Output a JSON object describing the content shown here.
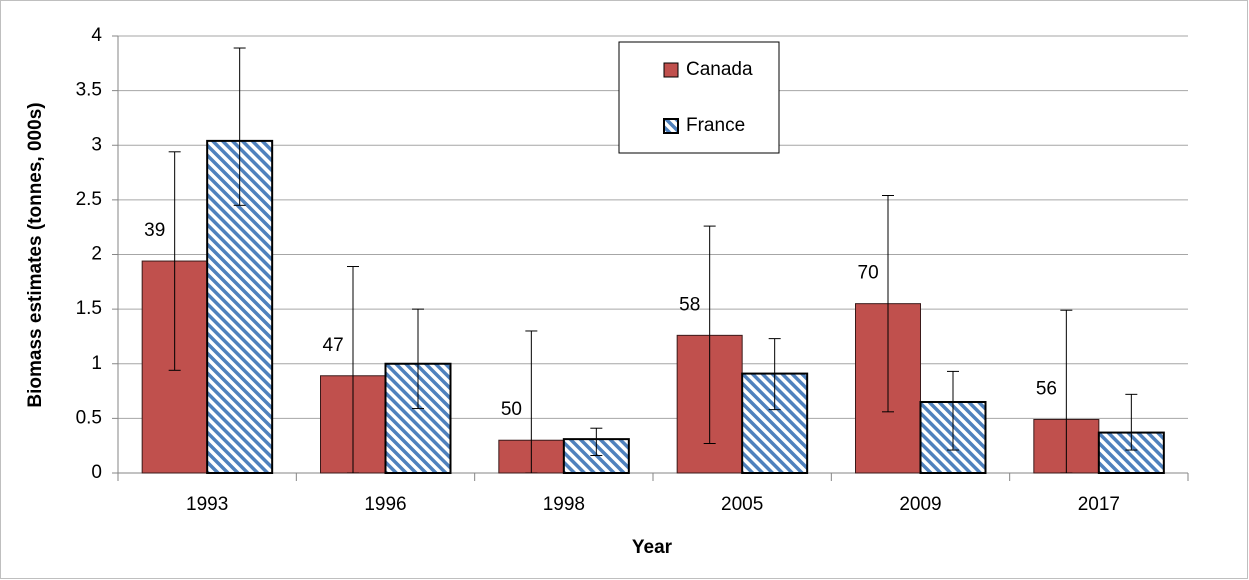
{
  "chart_data": {
    "type": "bar",
    "xlabel": "Year",
    "ylabel": "Biomass estimates (tonnes, 000s)",
    "categories": [
      "1993",
      "1996",
      "1998",
      "2005",
      "2009",
      "2017"
    ],
    "series": [
      {
        "name": "Canada",
        "color": "#c0504d",
        "pattern": "solid",
        "values": [
          1.94,
          0.89,
          0.3,
          1.26,
          1.55,
          0.49
        ],
        "lower": [
          0.94,
          0,
          0,
          0.27,
          0.56,
          0
        ],
        "upper": [
          2.94,
          1.89,
          1.3,
          2.26,
          2.54,
          1.49
        ]
      },
      {
        "name": "France",
        "color": "#4f81bd",
        "pattern": "hatch",
        "values": [
          3.04,
          1.0,
          0.31,
          0.91,
          0.65,
          0.37
        ],
        "lower": [
          2.45,
          0.59,
          0.16,
          0.58,
          0.21,
          0.21
        ],
        "upper": [
          3.89,
          1.5,
          0.41,
          1.23,
          0.93,
          0.72
        ]
      }
    ],
    "annotations": [
      39,
      47,
      50,
      58,
      70,
      56
    ],
    "ylim": [
      0,
      4
    ],
    "yticks": [
      0,
      0.5,
      1,
      1.5,
      2,
      2.5,
      3,
      3.5,
      4
    ],
    "grid": true,
    "legend": "top-center"
  }
}
